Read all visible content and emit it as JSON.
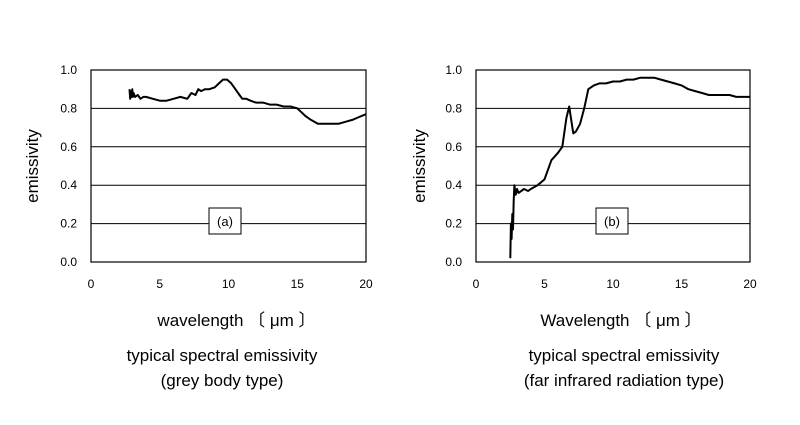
{
  "chart_data": [
    {
      "type": "line",
      "panel_label": "(a)",
      "xlabel": "wavelength 〔 μm 〕",
      "ylabel": "emissivity",
      "caption_line1": "typical spectral emissivity",
      "caption_line2": "(grey body type)",
      "xlim": [
        0,
        20
      ],
      "ylim": [
        0.0,
        1.0
      ],
      "x_ticks": [
        "0",
        "5",
        "10",
        "15",
        "20"
      ],
      "y_ticks": [
        "0.0",
        "0.2",
        "0.4",
        "0.6",
        "0.8",
        "1.0"
      ],
      "grid": "horizontal",
      "line_color": "#000000",
      "series": [
        {
          "x": [
            2.8,
            2.85,
            2.9,
            2.95,
            3.0,
            3.05,
            3.1,
            3.2,
            3.4,
            3.6,
            3.8,
            4.0,
            4.5,
            5.0,
            5.5,
            6.0,
            6.5,
            7.0,
            7.3,
            7.6,
            7.8,
            8.0,
            8.3,
            8.6,
            9.0,
            9.3,
            9.6,
            9.9,
            10.2,
            10.5,
            10.8,
            11.0,
            11.3,
            11.6,
            12.0,
            12.5,
            13.0,
            13.5,
            14.0,
            14.5,
            15.0,
            15.3,
            15.6,
            16.0,
            16.5,
            17.0,
            17.5,
            18.0,
            18.5,
            19.0,
            19.5,
            20.0
          ],
          "y": [
            0.9,
            0.85,
            0.89,
            0.86,
            0.9,
            0.86,
            0.88,
            0.86,
            0.87,
            0.85,
            0.86,
            0.86,
            0.85,
            0.84,
            0.84,
            0.85,
            0.86,
            0.85,
            0.88,
            0.87,
            0.9,
            0.89,
            0.9,
            0.9,
            0.91,
            0.93,
            0.95,
            0.95,
            0.93,
            0.9,
            0.87,
            0.85,
            0.85,
            0.84,
            0.83,
            0.83,
            0.82,
            0.82,
            0.81,
            0.81,
            0.8,
            0.78,
            0.76,
            0.74,
            0.72,
            0.72,
            0.72,
            0.72,
            0.73,
            0.74,
            0.755,
            0.77
          ]
        }
      ]
    },
    {
      "type": "line",
      "panel_label": "(b)",
      "xlabel": "Wavelength 〔 μm 〕",
      "ylabel": "emissivity",
      "caption_line1": "typical spectral emissivity",
      "caption_line2": "(far infrared radiation type)",
      "xlim": [
        0,
        20
      ],
      "ylim": [
        0.0,
        1.0
      ],
      "x_ticks": [
        "0",
        "5",
        "10",
        "15",
        "20"
      ],
      "y_ticks": [
        "0.0",
        "0.2",
        "0.4",
        "0.6",
        "0.8",
        "1.0"
      ],
      "grid": "horizontal",
      "line_color": "#000000",
      "series": [
        {
          "x": [
            2.5,
            2.55,
            2.6,
            2.65,
            2.7,
            2.75,
            2.8,
            2.9,
            3.0,
            3.1,
            3.3,
            3.5,
            3.8,
            4.0,
            4.5,
            5.0,
            5.5,
            6.0,
            6.3,
            6.6,
            6.8,
            6.95,
            7.1,
            7.3,
            7.6,
            7.9,
            8.2,
            8.6,
            9.0,
            9.5,
            10.0,
            10.5,
            11.0,
            11.5,
            12.0,
            12.5,
            13.0,
            13.5,
            14.0,
            14.5,
            15.0,
            15.5,
            16.0,
            16.5,
            17.0,
            17.5,
            18.0,
            18.5,
            19.0,
            19.5,
            20.0
          ],
          "y": [
            0.02,
            0.2,
            0.12,
            0.25,
            0.17,
            0.32,
            0.4,
            0.35,
            0.38,
            0.36,
            0.37,
            0.38,
            0.37,
            0.38,
            0.4,
            0.43,
            0.53,
            0.57,
            0.6,
            0.75,
            0.81,
            0.74,
            0.67,
            0.68,
            0.72,
            0.8,
            0.9,
            0.92,
            0.93,
            0.93,
            0.94,
            0.94,
            0.95,
            0.95,
            0.96,
            0.96,
            0.96,
            0.95,
            0.94,
            0.93,
            0.92,
            0.9,
            0.89,
            0.88,
            0.87,
            0.87,
            0.87,
            0.87,
            0.86,
            0.86,
            0.86
          ]
        }
      ]
    }
  ]
}
